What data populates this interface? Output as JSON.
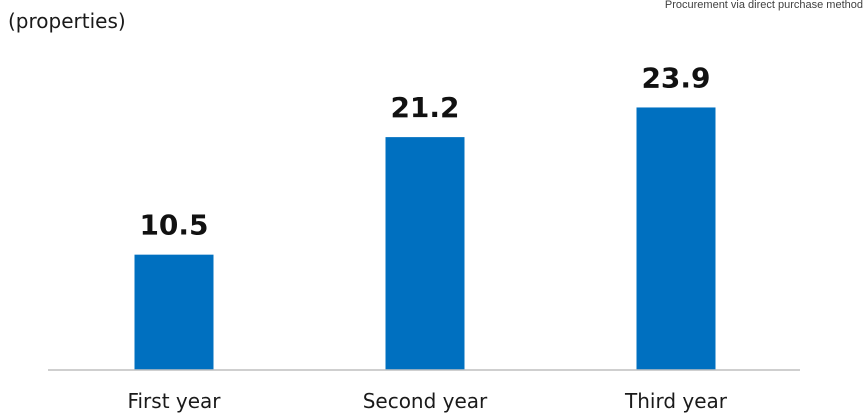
{
  "colors": {
    "bar": "#0070C0",
    "axis": "#bfbfbf",
    "text": "#1a1a1a"
  },
  "chart_data": {
    "type": "bar",
    "categories": [
      "First year",
      "Second year",
      "Third year"
    ],
    "values": [
      10.5,
      21.2,
      23.9
    ],
    "value_labels": [
      "10.5",
      "21.2",
      "23.9"
    ],
    "unit_label": "(properties)",
    "note": "Procurement via direct purchase method",
    "ylim": [
      0,
      26.4
    ],
    "grid": false,
    "legend": "none"
  }
}
